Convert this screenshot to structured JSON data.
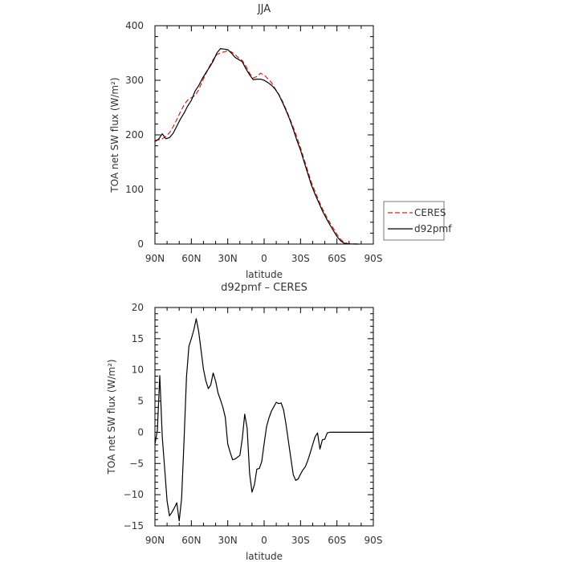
{
  "chart_data": [
    {
      "type": "line",
      "title": "JJA",
      "xlabel": "latitude",
      "ylabel": "TOA net SW flux (W/m²)",
      "xlim": [
        90,
        -90
      ],
      "ylim": [
        0,
        400
      ],
      "x_ticks": [
        {
          "value": 90,
          "label": "90N"
        },
        {
          "value": 60,
          "label": "60N"
        },
        {
          "value": 30,
          "label": "30N"
        },
        {
          "value": 0,
          "label": "0"
        },
        {
          "value": -30,
          "label": "30S"
        },
        {
          "value": -60,
          "label": "60S"
        },
        {
          "value": -90,
          "label": "90S"
        }
      ],
      "y_ticks": [
        0,
        100,
        200,
        300,
        400
      ],
      "legend": "right",
      "series": [
        {
          "name": "CERES",
          "color": "#e0201b",
          "dash": "dashed",
          "x": [
            90,
            87,
            84,
            81,
            78,
            75,
            72,
            69,
            66,
            63,
            60,
            57,
            54,
            51,
            48,
            45,
            42,
            39,
            36,
            33,
            30,
            27,
            24,
            21,
            18,
            15,
            12,
            9,
            6,
            3,
            0,
            -3,
            -6,
            -9,
            -12,
            -15,
            -18,
            -21,
            -24,
            -27,
            -30,
            -33,
            -36,
            -39,
            -42,
            -45,
            -48,
            -51,
            -54,
            -57,
            -60,
            -63,
            -66,
            -69,
            -72,
            -75,
            -78
          ],
          "y": [
            190,
            191,
            193,
            197,
            204,
            215,
            228,
            242,
            255,
            264,
            268,
            272,
            282,
            298,
            312,
            326,
            338,
            347,
            350,
            352,
            354,
            352,
            347,
            341,
            336,
            326,
            313,
            304,
            307,
            313,
            310,
            303,
            296,
            285,
            275,
            262,
            247,
            231,
            214,
            196,
            176,
            155,
            134,
            113,
            96,
            80,
            65,
            52,
            40,
            29,
            18,
            9,
            3,
            1,
            0.3,
            0.1,
            0
          ]
        },
        {
          "name": "d92pmf",
          "color": "#000000",
          "dash": "solid",
          "x": [
            90,
            87,
            84,
            81,
            78,
            75,
            72,
            69,
            66,
            63,
            60,
            57,
            54,
            51,
            48,
            45,
            42,
            39,
            36,
            33,
            30,
            27,
            24,
            21,
            18,
            15,
            12,
            9,
            6,
            3,
            0,
            -3,
            -6,
            -9,
            -12,
            -15,
            -18,
            -21,
            -24,
            -27,
            -30,
            -33,
            -36,
            -39,
            -42,
            -45,
            -48,
            -51,
            -54,
            -57,
            -60,
            -63,
            -66,
            -69,
            -72,
            -75,
            -78
          ],
          "y": [
            188,
            192,
            202,
            193,
            195,
            203,
            216,
            229,
            240,
            253,
            263,
            280,
            290,
            303,
            314,
            324,
            335,
            350,
            358,
            357,
            356,
            350,
            342,
            338,
            334,
            321,
            310,
            301,
            302,
            302,
            300,
            296,
            291,
            284,
            274,
            260,
            245,
            229,
            210,
            190,
            172,
            150,
            129,
            108,
            91,
            76,
            61,
            48,
            36,
            25,
            14,
            6,
            1.5,
            0.5,
            0.2,
            0,
            0
          ]
        }
      ]
    },
    {
      "type": "line",
      "title": "d92pmf – CERES",
      "xlabel": "latitude",
      "ylabel": "TOA net SW flux (W/m²)",
      "xlim": [
        90,
        -90
      ],
      "ylim": [
        -15,
        20
      ],
      "x_ticks": [
        {
          "value": 90,
          "label": "90N"
        },
        {
          "value": 60,
          "label": "60N"
        },
        {
          "value": 30,
          "label": "30N"
        },
        {
          "value": 0,
          "label": "0"
        },
        {
          "value": -30,
          "label": "30S"
        },
        {
          "value": -60,
          "label": "60S"
        },
        {
          "value": -90,
          "label": "90S"
        }
      ],
      "y_ticks": [
        -15,
        -10,
        -5,
        0,
        5,
        10,
        15,
        20
      ],
      "series": [
        {
          "name": "",
          "color": "#000000",
          "dash": "solid",
          "x": [
            90,
            88,
            86,
            84,
            82,
            80,
            78,
            76,
            74,
            72,
            70,
            68,
            66,
            64,
            62,
            60,
            58,
            56,
            54,
            52,
            50,
            48,
            46,
            44,
            42,
            40,
            38,
            36,
            34,
            32,
            30,
            28,
            26,
            24,
            22,
            20,
            18,
            16,
            14,
            12,
            10,
            8,
            6,
            4,
            2,
            0,
            -2,
            -4,
            -6,
            -8,
            -10,
            -12,
            -14,
            -16,
            -18,
            -20,
            -22,
            -24,
            -26,
            -28,
            -30,
            -32,
            -34,
            -36,
            -38,
            -40,
            -42,
            -44,
            -46,
            -48,
            -50,
            -52,
            -54,
            -56,
            -58,
            -60,
            -62,
            -64,
            -66,
            -68,
            -70,
            -72,
            -74,
            -76,
            -78,
            -80,
            -82,
            -84,
            -86,
            -88,
            -90
          ],
          "y": [
            -1.9,
            0.3,
            9.1,
            -0.7,
            -5.8,
            -11.0,
            -13.4,
            -12.8,
            -12.1,
            -11.3,
            -14.2,
            -10.6,
            -1.1,
            8.9,
            13.8,
            15.0,
            16.4,
            18.2,
            16.2,
            13.2,
            10.1,
            8.2,
            7.0,
            7.6,
            9.5,
            8.2,
            6.3,
            5.2,
            4.0,
            2.4,
            -1.9,
            -3.2,
            -4.4,
            -4.3,
            -4.0,
            -3.7,
            -1.0,
            2.9,
            0.7,
            -6.6,
            -9.6,
            -8.4,
            -5.9,
            -5.8,
            -4.7,
            -1.8,
            0.9,
            2.3,
            3.4,
            4.1,
            4.8,
            4.6,
            4.7,
            3.6,
            1.3,
            -1.4,
            -4.1,
            -6.8,
            -7.7,
            -7.5,
            -6.7,
            -6.0,
            -5.5,
            -4.5,
            -3.3,
            -2.0,
            -0.7,
            -0.1,
            -2.7,
            -1.2,
            -1.1,
            -0.1,
            0.0,
            0.0,
            0.0,
            0.0,
            0.0,
            0.0,
            0.0,
            0.0,
            0.0,
            0.0,
            0.0,
            0.0,
            0.0,
            0.0,
            0.0,
            0.0,
            0.0,
            0.0,
            0.0
          ]
        }
      ]
    }
  ]
}
